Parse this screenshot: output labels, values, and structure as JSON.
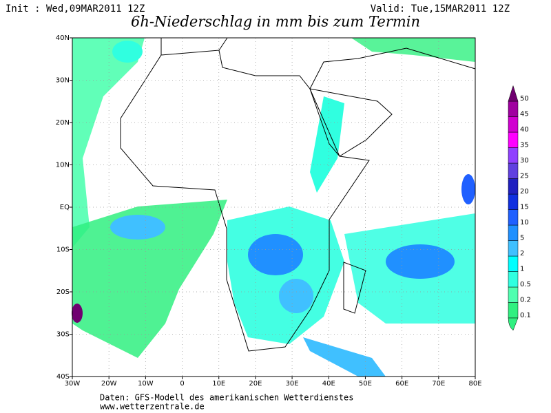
{
  "header": {
    "init": "Init : Wed,09MAR2011 12Z",
    "valid": "Valid: Tue,15MAR2011 12Z",
    "title": "6h-Niederschlag in mm bis zum Termin"
  },
  "map": {
    "x_ticks": [
      "30W",
      "20W",
      "10W",
      "0",
      "10E",
      "20E",
      "30E",
      "40E",
      "50E",
      "60E",
      "70E",
      "80E"
    ],
    "y_ticks": [
      "40N",
      "30N",
      "20N",
      "10N",
      "EQ",
      "10S",
      "20S",
      "30S",
      "40S"
    ]
  },
  "legend": {
    "levels": [
      "0.1",
      "0.2",
      "0.5",
      "1",
      "2",
      "5",
      "10",
      "15",
      "20",
      "25",
      "30",
      "35",
      "40",
      "45",
      "50"
    ],
    "colors": [
      "#30f080",
      "#50ffb0",
      "#30ffe0",
      "#00ffff",
      "#40c0ff",
      "#2090ff",
      "#2060ff",
      "#1030e0",
      "#2020c0",
      "#6040e0",
      "#9040ff",
      "#ff00ff",
      "#d000d0",
      "#a000a0",
      "#700070"
    ]
  },
  "footer": {
    "source": "Daten: GFS-Modell des amerikanischen Wetterdienstes",
    "url": "www.wetterzentrale.de"
  }
}
